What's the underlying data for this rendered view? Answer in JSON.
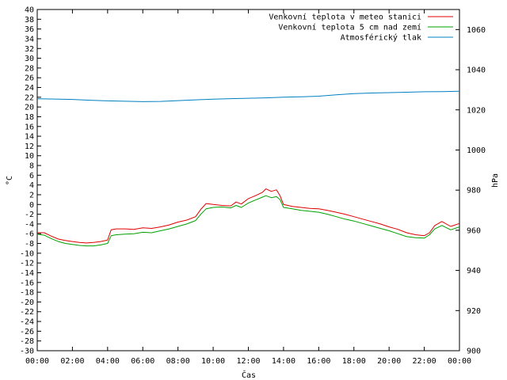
{
  "chart_data": {
    "type": "line",
    "xlabel": "Čas",
    "ylabel_left": "°C",
    "ylabel_right": "hPa",
    "x_ticks": [
      "00:00",
      "02:00",
      "04:00",
      "06:00",
      "08:00",
      "10:00",
      "12:00",
      "14:00",
      "16:00",
      "18:00",
      "20:00",
      "22:00",
      "00:00"
    ],
    "x_range_hours": [
      0,
      24
    ],
    "ylim_left": [
      -30,
      40
    ],
    "ylim_right": [
      900,
      1070
    ],
    "y_ticks_left": [
      40,
      38,
      36,
      34,
      32,
      30,
      28,
      26,
      24,
      22,
      20,
      18,
      16,
      14,
      12,
      10,
      8,
      6,
      4,
      2,
      0,
      -2,
      -4,
      -6,
      -8,
      -10,
      -12,
      -14,
      -16,
      -18,
      -20,
      -22,
      -24,
      -26,
      -28,
      -30
    ],
    "y_ticks_right": [
      1060,
      1040,
      1020,
      1000,
      980,
      960,
      940,
      920,
      900
    ],
    "grid": false,
    "legend_position": "top-right",
    "series": [
      {
        "name": "Venkovní teplota v meteo stanici",
        "color": "#e00000",
        "axis": "left",
        "x": [
          0,
          0.4,
          0.8,
          1.2,
          1.6,
          2.0,
          2.4,
          2.8,
          3.2,
          3.6,
          4.0,
          4.2,
          4.5,
          5.0,
          5.5,
          6.0,
          6.5,
          7.0,
          7.5,
          8.0,
          8.5,
          9.0,
          9.3,
          9.6,
          10.0,
          10.5,
          11.0,
          11.3,
          11.6,
          12.0,
          12.4,
          12.8,
          13.0,
          13.3,
          13.6,
          13.8,
          14.0,
          14.5,
          15.0,
          15.5,
          16.0,
          16.5,
          17.0,
          17.5,
          18.0,
          18.5,
          19.0,
          19.5,
          20.0,
          20.5,
          21.0,
          21.5,
          22.0,
          22.3,
          22.6,
          23.0,
          23.5,
          24.0
        ],
        "values": [
          -5.8,
          -5.8,
          -6.5,
          -7.1,
          -7.4,
          -7.6,
          -7.8,
          -7.9,
          -7.8,
          -7.6,
          -7.3,
          -5.2,
          -5.0,
          -5.0,
          -5.1,
          -4.8,
          -4.9,
          -4.6,
          -4.2,
          -3.6,
          -3.2,
          -2.5,
          -1.0,
          0.2,
          0.0,
          -0.2,
          -0.3,
          0.5,
          0.1,
          1.2,
          1.8,
          2.5,
          3.2,
          2.7,
          3.0,
          1.8,
          0.0,
          -0.4,
          -0.6,
          -0.8,
          -0.9,
          -1.2,
          -1.6,
          -2.0,
          -2.5,
          -3.0,
          -3.5,
          -4.0,
          -4.6,
          -5.1,
          -5.8,
          -6.2,
          -6.4,
          -5.8,
          -4.3,
          -3.5,
          -4.5,
          -3.9
        ]
      },
      {
        "name": "Venkovní teplota 5 cm nad zemí",
        "color": "#00a000",
        "axis": "left",
        "x": [
          0,
          0.4,
          0.8,
          1.2,
          1.6,
          2.0,
          2.4,
          2.8,
          3.2,
          3.6,
          4.0,
          4.2,
          4.5,
          5.0,
          5.5,
          6.0,
          6.5,
          7.0,
          7.5,
          8.0,
          8.5,
          9.0,
          9.3,
          9.6,
          10.0,
          10.5,
          11.0,
          11.3,
          11.6,
          12.0,
          12.4,
          12.8,
          13.0,
          13.3,
          13.6,
          13.8,
          14.0,
          14.5,
          15.0,
          15.5,
          16.0,
          16.5,
          17.0,
          17.5,
          18.0,
          18.5,
          19.0,
          19.5,
          20.0,
          20.5,
          21.0,
          21.5,
          22.0,
          22.3,
          22.6,
          23.0,
          23.5,
          24.0
        ],
        "values": [
          -6.1,
          -6.3,
          -7.0,
          -7.6,
          -8.0,
          -8.2,
          -8.4,
          -8.5,
          -8.5,
          -8.3,
          -8.0,
          -6.4,
          -6.2,
          -6.1,
          -6.0,
          -5.7,
          -5.8,
          -5.4,
          -5.0,
          -4.5,
          -4.0,
          -3.3,
          -2.0,
          -0.9,
          -0.6,
          -0.5,
          -0.7,
          -0.2,
          -0.6,
          0.3,
          0.9,
          1.5,
          1.8,
          1.4,
          1.6,
          1.0,
          -0.6,
          -0.9,
          -1.2,
          -1.4,
          -1.6,
          -2.0,
          -2.5,
          -3.0,
          -3.4,
          -3.9,
          -4.4,
          -4.9,
          -5.4,
          -6.0,
          -6.6,
          -6.8,
          -6.9,
          -6.2,
          -5.0,
          -4.3,
          -5.2,
          -4.6
        ]
      },
      {
        "name": "Atmosférický tlak",
        "color": "#0080c0",
        "axis": "right",
        "x": [
          0,
          1,
          2,
          3,
          4,
          5,
          6,
          7,
          8,
          9,
          10,
          11,
          12,
          13,
          14,
          15,
          16,
          17,
          18,
          19,
          20,
          21,
          22,
          23,
          24
        ],
        "values": [
          1025.5,
          1025.4,
          1025.2,
          1024.8,
          1024.5,
          1024.3,
          1024.1,
          1024.2,
          1024.6,
          1025.0,
          1025.3,
          1025.6,
          1025.8,
          1026.0,
          1026.3,
          1026.5,
          1026.8,
          1027.5,
          1028.1,
          1028.4,
          1028.6,
          1028.8,
          1029.0,
          1029.1,
          1029.3
        ]
      }
    ]
  }
}
